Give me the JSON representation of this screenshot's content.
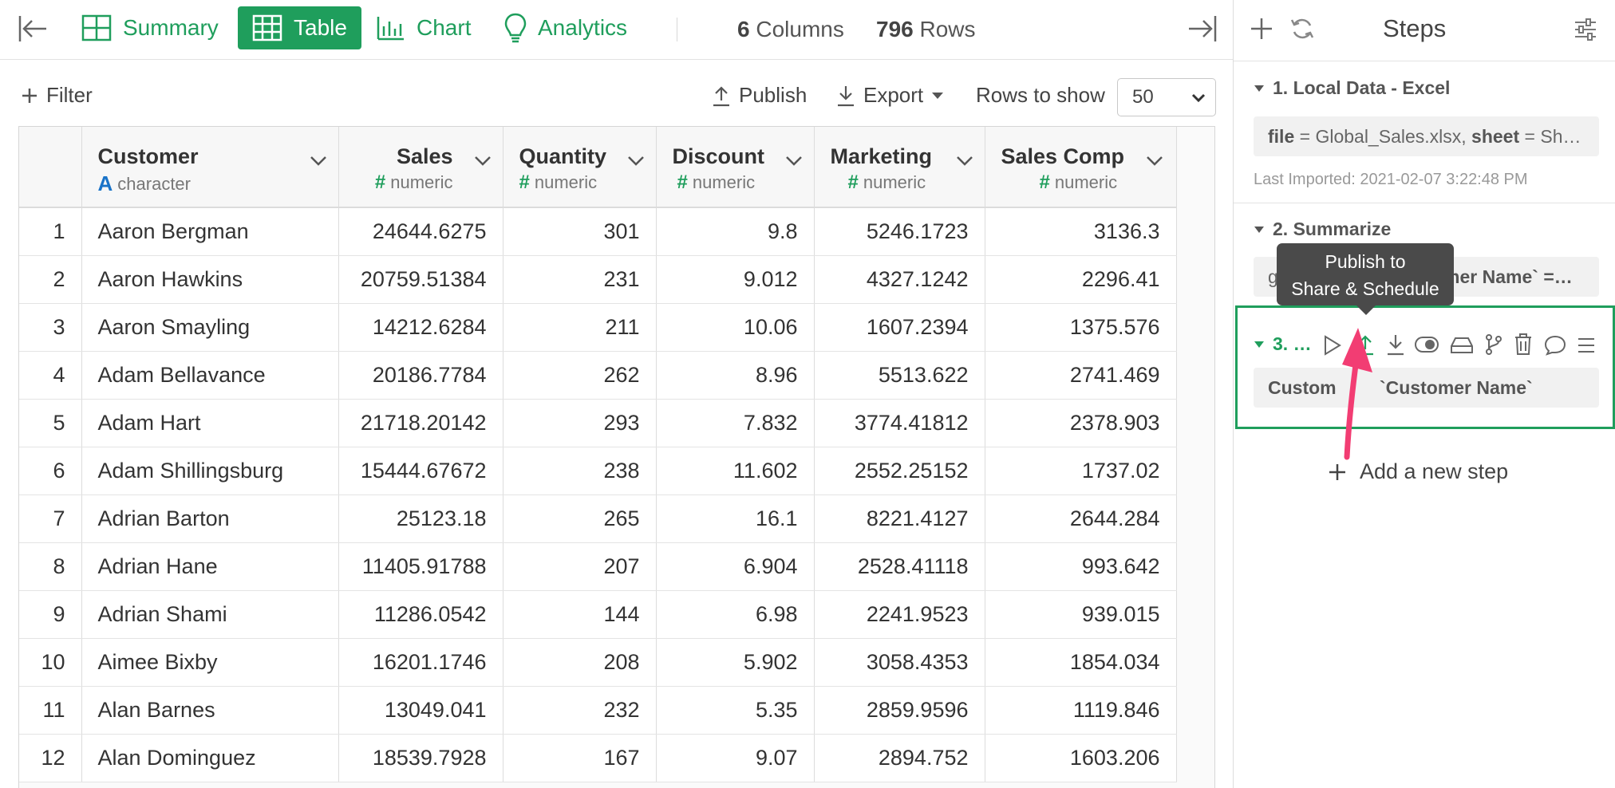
{
  "tabs": {
    "summary": "Summary",
    "table": "Table",
    "chart": "Chart",
    "analytics": "Analytics"
  },
  "stats": {
    "columns_count": "6",
    "columns_label": "Columns",
    "rows_count": "796",
    "rows_label": "Rows"
  },
  "toolbar": {
    "filter": "Filter",
    "publish": "Publish",
    "export": "Export",
    "rows_to_show_label": "Rows to show",
    "rows_to_show_value": "50"
  },
  "table": {
    "columns": [
      {
        "name": "Customer",
        "type": "character"
      },
      {
        "name": "Sales",
        "type": "numeric"
      },
      {
        "name": "Quantity",
        "type": "numeric"
      },
      {
        "name": "Discount",
        "type": "numeric"
      },
      {
        "name": "Marketing",
        "type": "numeric"
      },
      {
        "name": "Sales Comp",
        "type": "numeric"
      }
    ],
    "rows": [
      {
        "idx": "1",
        "cells": [
          "Aaron Bergman",
          "24644.6275",
          "301",
          "9.8",
          "5246.1723",
          "3136.3"
        ]
      },
      {
        "idx": "2",
        "cells": [
          "Aaron Hawkins",
          "20759.51384",
          "231",
          "9.012",
          "4327.1242",
          "2296.41"
        ]
      },
      {
        "idx": "3",
        "cells": [
          "Aaron Smayling",
          "14212.6284",
          "211",
          "10.06",
          "1607.2394",
          "1375.576"
        ]
      },
      {
        "idx": "4",
        "cells": [
          "Adam Bellavance",
          "20186.7784",
          "262",
          "8.96",
          "5513.622",
          "2741.469"
        ]
      },
      {
        "idx": "5",
        "cells": [
          "Adam Hart",
          "21718.20142",
          "293",
          "7.832",
          "3774.41812",
          "2378.903"
        ]
      },
      {
        "idx": "6",
        "cells": [
          "Adam Shillingsburg",
          "15444.67672",
          "238",
          "11.602",
          "2552.25152",
          "1737.02"
        ]
      },
      {
        "idx": "7",
        "cells": [
          "Adrian Barton",
          "25123.18",
          "265",
          "16.1",
          "8221.4127",
          "2644.284"
        ]
      },
      {
        "idx": "8",
        "cells": [
          "Adrian Hane",
          "11405.91788",
          "207",
          "6.904",
          "2528.41118",
          "993.642"
        ]
      },
      {
        "idx": "9",
        "cells": [
          "Adrian Shami",
          "11286.0542",
          "144",
          "6.98",
          "2241.9523",
          "939.015"
        ]
      },
      {
        "idx": "10",
        "cells": [
          "Aimee Bixby",
          "16201.1746",
          "208",
          "5.902",
          "3058.4353",
          "1854.034"
        ]
      },
      {
        "idx": "11",
        "cells": [
          "Alan Barnes",
          "13049.041",
          "232",
          "5.35",
          "2859.9596",
          "1119.846"
        ]
      },
      {
        "idx": "12",
        "cells": [
          "Alan Dominguez",
          "18539.7928",
          "167",
          "9.07",
          "2894.752",
          "1603.206"
        ]
      }
    ]
  },
  "steps": {
    "title": "Steps",
    "step1": {
      "title": "1. Local Data - Excel",
      "file_key": "file",
      "file_value": " = Global_Sales.xlsx, ",
      "sheet_key": "sheet",
      "sheet_value": " = Sh…",
      "last_imported": "Last Imported: 2021-02-07 3:22:48 PM"
    },
    "step2": {
      "title": "2. Summarize",
      "box_prefix": "g",
      "box_suffix": "omer Name` =…"
    },
    "step3": {
      "title": "3. …",
      "box_left": "Custom",
      "box_right": "`Customer Name`"
    },
    "add_step": "Add a new step"
  },
  "tooltip": {
    "line1": "Publish to",
    "line2": "Share & Schedule"
  },
  "colors": {
    "brand_green": "#1f9e5c",
    "annotation_pink": "#f23d73",
    "type_blue": "#1a73c8"
  }
}
